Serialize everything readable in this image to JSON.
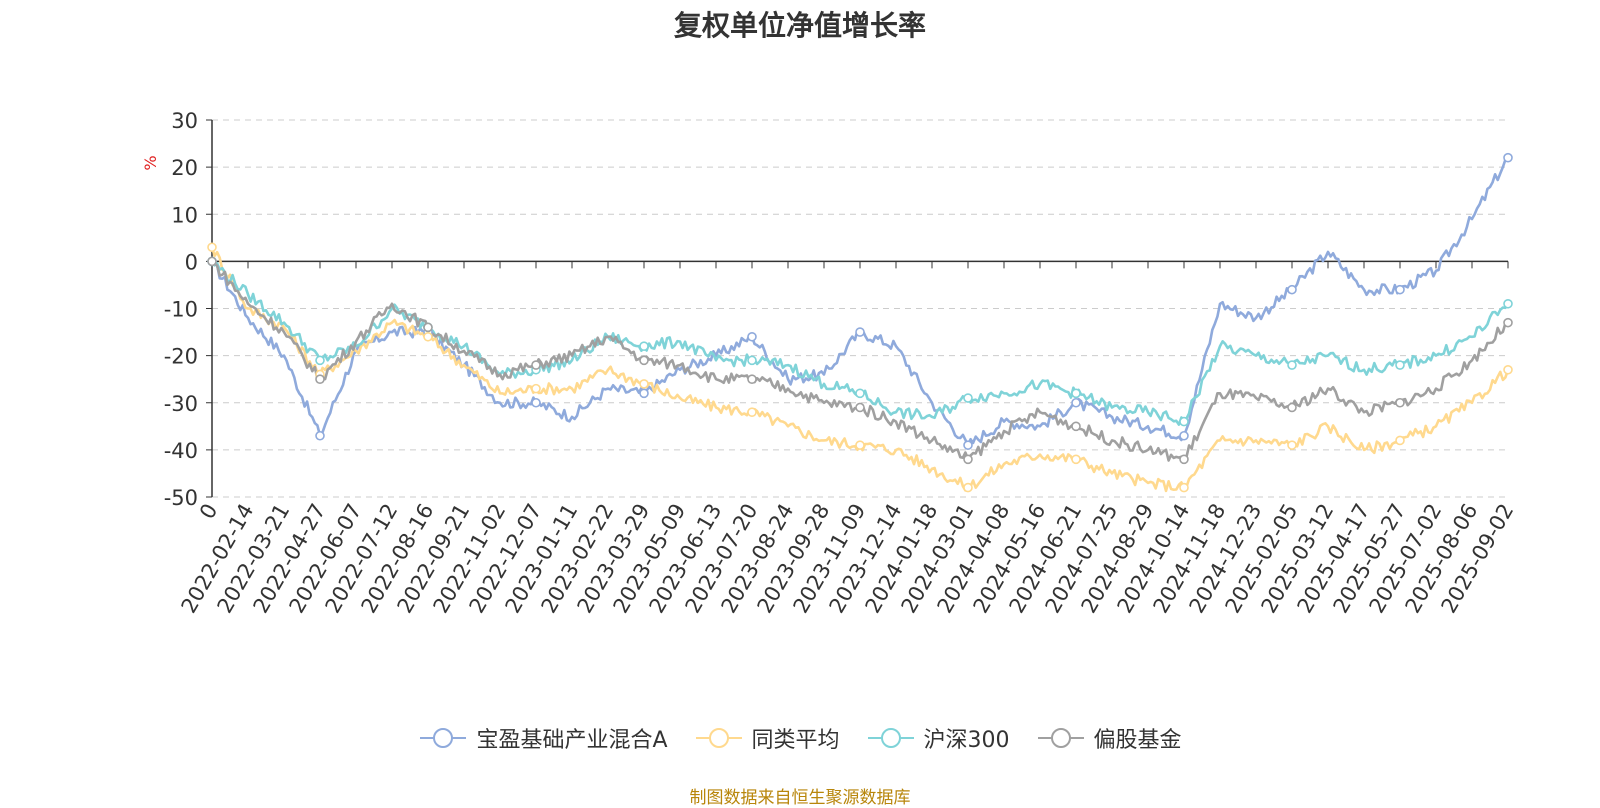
{
  "source_note": "制图数据来自恒生聚源数据库",
  "chart_data": {
    "type": "line",
    "title": "复权单位净值增长率",
    "ylabel": "%",
    "ylim": [
      -50,
      30
    ],
    "yticks": [
      30,
      20,
      10,
      0,
      -10,
      -20,
      -30,
      -40,
      -50
    ],
    "grid": true,
    "legend_position": "bottom",
    "x": [
      "0",
      "2022-02-14",
      "2022-03-21",
      "2022-04-27",
      "2022-06-07",
      "2022-07-12",
      "2022-08-16",
      "2022-09-21",
      "2022-11-02",
      "2022-12-07",
      "2023-01-11",
      "2023-02-22",
      "2023-03-29",
      "2023-05-09",
      "2023-06-13",
      "2023-07-20",
      "2023-08-24",
      "2023-09-28",
      "2023-11-09",
      "2023-12-14",
      "2024-01-18",
      "2024-03-01",
      "2024-04-08",
      "2024-05-16",
      "2024-06-21",
      "2024-07-25",
      "2024-08-29",
      "2024-10-14",
      "2024-11-18",
      "2024-12-23",
      "2025-02-05",
      "2025-03-12",
      "2025-04-17",
      "2025-05-27",
      "2025-07-02",
      "2025-08-06",
      "2025-09-02"
    ],
    "series": [
      {
        "name": "宝盈基础产业混合A",
        "color": "#8faadc",
        "values": [
          0,
          -12,
          -20,
          -37,
          -19,
          -15,
          -15,
          -22,
          -30,
          -30,
          -33,
          -27,
          -28,
          -23,
          -20,
          -16,
          -25,
          -24,
          -15,
          -18,
          -30,
          -39,
          -34,
          -35,
          -30,
          -33,
          -35,
          -37,
          -9,
          -12,
          -6,
          2,
          -6,
          -6,
          -2,
          9,
          22
        ]
      },
      {
        "name": "同类平均",
        "color": "#ffd98e",
        "values": [
          3,
          -10,
          -14,
          -24,
          -19,
          -13,
          -16,
          -22,
          -28,
          -27,
          -27,
          -23,
          -26,
          -29,
          -31,
          -32,
          -35,
          -38,
          -39,
          -40,
          -44,
          -48,
          -43,
          -41,
          -42,
          -45,
          -47,
          -48,
          -38,
          -38,
          -39,
          -35,
          -40,
          -38,
          -35,
          -30,
          -23
        ]
      },
      {
        "name": "沪深300",
        "color": "#7fd3d8",
        "values": [
          0,
          -7,
          -13,
          -21,
          -18,
          -10,
          -14,
          -18,
          -24,
          -23,
          -21,
          -16,
          -18,
          -17,
          -21,
          -21,
          -22,
          -26,
          -28,
          -32,
          -33,
          -29,
          -28,
          -26,
          -28,
          -31,
          -32,
          -34,
          -18,
          -20,
          -22,
          -20,
          -23,
          -22,
          -20,
          -16,
          -9
        ]
      },
      {
        "name": "偏股基金",
        "color": "#a0a0a0",
        "values": [
          0,
          -9,
          -15,
          -25,
          -17,
          -9,
          -14,
          -19,
          -24,
          -22,
          -20,
          -16,
          -21,
          -22,
          -25,
          -25,
          -27,
          -30,
          -31,
          -34,
          -38,
          -42,
          -36,
          -32,
          -35,
          -38,
          -40,
          -42,
          -28,
          -29,
          -31,
          -27,
          -32,
          -30,
          -27,
          -21,
          -13
        ]
      }
    ]
  }
}
